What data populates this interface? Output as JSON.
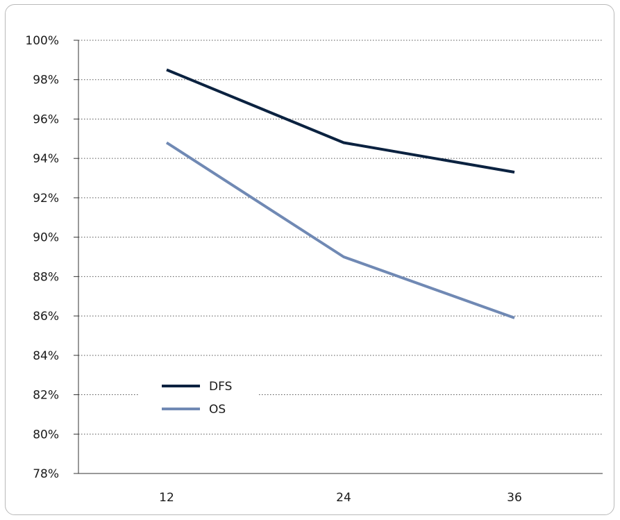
{
  "chart_data": {
    "type": "line",
    "x": [
      12,
      24,
      36
    ],
    "series": [
      {
        "name": "DFS",
        "values": [
          98.5,
          94.8,
          93.3
        ],
        "color": "#0b2240"
      },
      {
        "name": "OS",
        "values": [
          94.8,
          89.0,
          85.9
        ],
        "color": "#7089b4"
      }
    ],
    "y_ticks": [
      "78%",
      "80%",
      "82%",
      "84%",
      "86%",
      "88%",
      "90%",
      "92%",
      "94%",
      "96%",
      "98%",
      "100%"
    ],
    "x_ticks": [
      "12",
      "24",
      "36"
    ],
    "ylim": [
      78,
      100
    ],
    "grid": "horizontal-dotted",
    "legend_position": "bottom-left"
  }
}
